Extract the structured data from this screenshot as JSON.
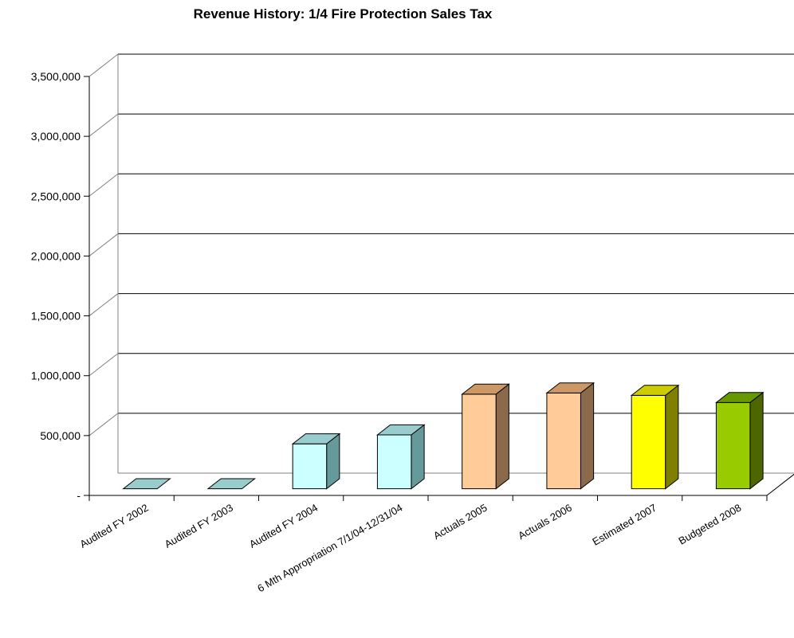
{
  "chart_data": {
    "type": "bar",
    "title": "Revenue History: 1/4 Fire Protection Sales Tax",
    "xlabel": "",
    "ylabel": "",
    "ylim": [
      0,
      3500000
    ],
    "yticks": [
      "-",
      "500,000",
      "1,000,000",
      "1,500,000",
      "2,000,000",
      "2,500,000",
      "3,000,000",
      "3,500,000"
    ],
    "grid": true,
    "categories": [
      "Audited FY 2002",
      "Audited FY 2003",
      "Audited FY 2004",
      "6 Mth Appropriation  7/1/04-12/31/04",
      "Actuals 2005",
      "Actuals 2006",
      "Estimated 2007",
      "Budgeted 2008"
    ],
    "values": [
      0,
      0,
      375000,
      450000,
      790000,
      800000,
      780000,
      720000
    ],
    "colors": {
      "front": [
        "#99cccc",
        "#99cccc",
        "#ccffff",
        "#ccffff",
        "#ffcc99",
        "#ffcc99",
        "#ffff00",
        "#99cc00"
      ],
      "top": [
        "#99cccc",
        "#99cccc",
        "#99cccc",
        "#99cccc",
        "#cc9966",
        "#cc9966",
        "#cccc00",
        "#669900"
      ],
      "side": [
        "#669999",
        "#669999",
        "#669999",
        "#669999",
        "#8a6a4a",
        "#8a6a4a",
        "#808000",
        "#4d6600"
      ]
    }
  }
}
